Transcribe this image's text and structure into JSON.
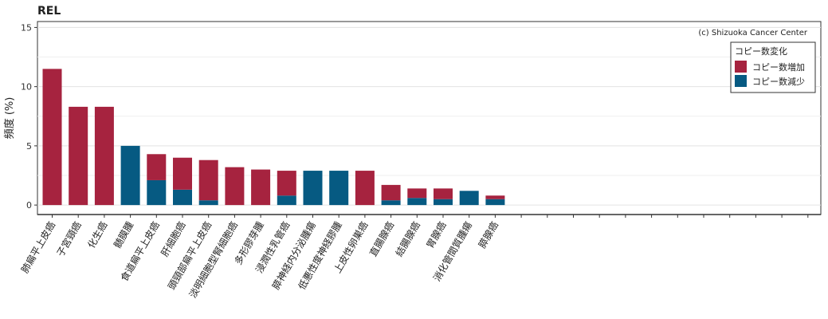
{
  "chart_data": {
    "type": "bar",
    "title": "REL",
    "xlabel": "",
    "ylabel": "頻度 (%)",
    "ylim": [
      -0.8,
      15.5
    ],
    "yticks": [
      0,
      5,
      10,
      15
    ],
    "grid": true,
    "legend_position": "top-right",
    "credit": "(c) Shizuoka Cancer Center",
    "legend_title": "コピー数変化",
    "categories": [
      "肺扁平上皮癌",
      "子宮頸癌",
      "化生癌",
      "髄膜腫",
      "食道扁平上皮癌",
      "肝細胞癌",
      "頭頸部扁平上皮癌",
      "淡明細胞型腎細胞癌",
      "多形膠芽腫",
      "浸潤性乳管癌",
      "膵神経内分泌腫瘍",
      "低悪性度神経膠腫",
      "上皮性卵巣癌",
      "直腸腺癌",
      "結腸腺癌",
      "胃腺癌",
      "消化管間質腫瘍",
      "膵腺癌"
    ],
    "empty_slots": 12,
    "series": [
      {
        "name": "コピー数増加",
        "color": "#A6233F",
        "values": [
          11.5,
          8.3,
          8.3,
          0,
          2.2,
          2.7,
          3.4,
          3.2,
          3.0,
          2.1,
          0,
          0,
          2.9,
          1.3,
          0.8,
          0.9,
          0,
          0.3
        ]
      },
      {
        "name": "コピー数減少",
        "color": "#065A82",
        "values": [
          0,
          0,
          0,
          5.0,
          2.1,
          1.3,
          0.4,
          0,
          0,
          0.8,
          2.9,
          2.9,
          0,
          0.4,
          0.6,
          0.5,
          1.2,
          0.5
        ]
      }
    ]
  }
}
